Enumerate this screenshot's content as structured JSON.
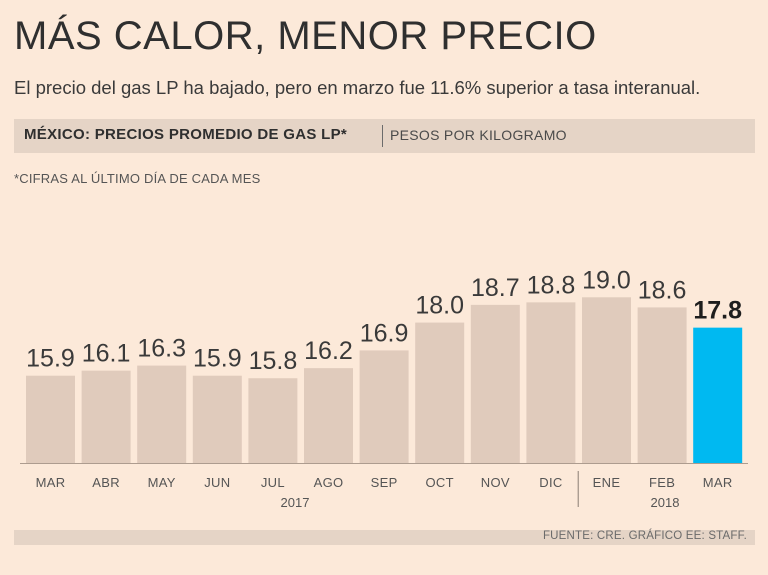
{
  "header": {
    "title": "MÁS CALOR, MENOR PRECIO",
    "subtitle": "El precio del gas LP ha bajado, pero en marzo fue 11.6% superior a tasa interanual."
  },
  "band": {
    "bold": "MÉXICO: PRECIOS PROMEDIO DE GAS LP*",
    "light": "PESOS POR KILOGRAMO"
  },
  "note": "*CIFRAS AL ÚLTIMO DÍA DE CADA MES",
  "source": "FUENTE: CRE. GRÁFICO EE: STAFF.",
  "colors": {
    "background": "#fce9d9",
    "bar": "#e0cbbc",
    "highlight": "#00b9f1",
    "baseline": "#ad9c8f"
  },
  "chart_data": {
    "type": "bar",
    "categories": [
      "MAR",
      "ABR",
      "MAY",
      "JUN",
      "JUL",
      "AGO",
      "SEP",
      "OCT",
      "NOV",
      "DIC",
      "ENE",
      "FEB",
      "MAR"
    ],
    "values": [
      15.9,
      16.1,
      16.3,
      15.9,
      15.8,
      16.2,
      16.9,
      18.0,
      18.7,
      18.8,
      19.0,
      18.6,
      17.8
    ],
    "value_labels": [
      "15.9",
      "16.1",
      "16.3",
      "15.9",
      "15.8",
      "16.2",
      "16.9",
      "18.0",
      "18.7",
      "18.8",
      "19.0",
      "18.6",
      "17.8"
    ],
    "year_groups": [
      {
        "label": "2017",
        "from": 0,
        "to": 9
      },
      {
        "label": "2018",
        "from": 10,
        "to": 12
      }
    ],
    "highlight_index": 12,
    "title": "MÉXICO: PRECIOS PROMEDIO DE GAS LP*",
    "ylabel": "PESOS POR KILOGRAMO",
    "ylim": [
      10,
      19
    ],
    "grid": false,
    "legend": "none"
  }
}
